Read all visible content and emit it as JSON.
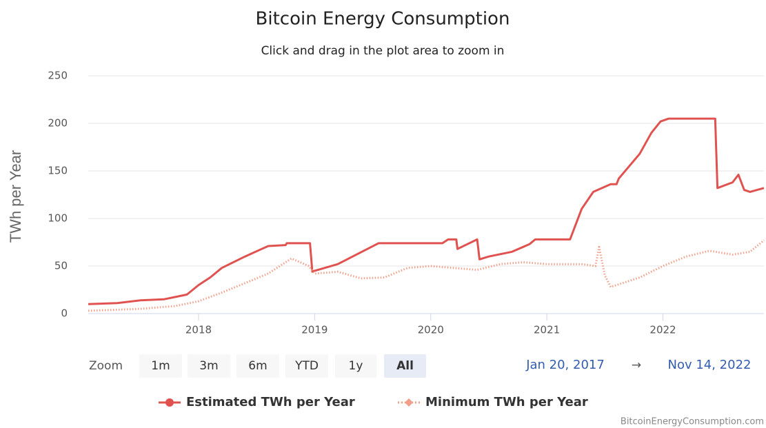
{
  "chart_data": {
    "type": "line",
    "title": "Bitcoin Energy Consumption",
    "subtitle": "Click and drag in the plot area to zoom in",
    "y_label": "TWh per Year",
    "xlim": [
      2017.05,
      2022.87
    ],
    "xticks": [
      2018,
      2019,
      2020,
      2021,
      2022
    ],
    "ylim": [
      0,
      250
    ],
    "yticks": [
      0,
      50,
      100,
      150,
      200,
      250
    ],
    "grid": true,
    "legend": "bottom",
    "series": [
      {
        "name": "Estimated TWh per Year",
        "color": "#e0524f",
        "style": "solid",
        "x": [
          2017.05,
          2017.3,
          2017.5,
          2017.7,
          2017.9,
          2018.0,
          2018.1,
          2018.2,
          2018.4,
          2018.6,
          2018.75,
          2018.76,
          2018.96,
          2018.98,
          2019.0,
          2019.2,
          2019.55,
          2020.1,
          2020.15,
          2020.22,
          2020.23,
          2020.4,
          2020.42,
          2020.5,
          2020.7,
          2020.85,
          2020.9,
          2021.2,
          2021.3,
          2021.4,
          2021.55,
          2021.6,
          2021.62,
          2021.8,
          2021.9,
          2021.98,
          2022.05,
          2022.45,
          2022.47,
          2022.6,
          2022.65,
          2022.7,
          2022.75,
          2022.87
        ],
        "values": [
          10,
          11,
          14,
          15,
          20,
          30,
          38,
          48,
          60,
          71,
          72,
          74,
          74,
          44,
          45,
          52,
          74,
          74,
          78,
          78,
          68,
          78,
          57,
          60,
          65,
          73,
          78,
          78,
          110,
          128,
          136,
          136,
          142,
          168,
          190,
          202,
          205,
          205,
          132,
          138,
          146,
          130,
          128,
          132
        ]
      },
      {
        "name": "Minimum TWh per Year",
        "color": "#f0a08a",
        "style": "dotted",
        "x": [
          2017.05,
          2017.5,
          2017.8,
          2018.0,
          2018.2,
          2018.4,
          2018.6,
          2018.8,
          2018.95,
          2019.0,
          2019.2,
          2019.4,
          2019.6,
          2019.8,
          2020.0,
          2020.2,
          2020.4,
          2020.6,
          2020.8,
          2021.0,
          2021.3,
          2021.42,
          2021.45,
          2021.5,
          2021.55,
          2021.6,
          2021.8,
          2022.0,
          2022.2,
          2022.4,
          2022.6,
          2022.75,
          2022.87
        ],
        "values": [
          3,
          5,
          8,
          13,
          22,
          32,
          42,
          58,
          50,
          42,
          44,
          37,
          38,
          48,
          50,
          48,
          46,
          52,
          54,
          52,
          52,
          50,
          70,
          40,
          28,
          30,
          38,
          50,
          60,
          66,
          62,
          65,
          77
        ]
      }
    ],
    "zoom_label": "Zoom",
    "zoom_buttons": [
      "1m",
      "3m",
      "6m",
      "YTD",
      "1y",
      "All"
    ],
    "zoom_selected": "All",
    "range_from": "Jan 20, 2017",
    "range_arrow": "→",
    "range_to": "Nov 14, 2022",
    "credits": "BitcoinEnergyConsumption.com"
  }
}
